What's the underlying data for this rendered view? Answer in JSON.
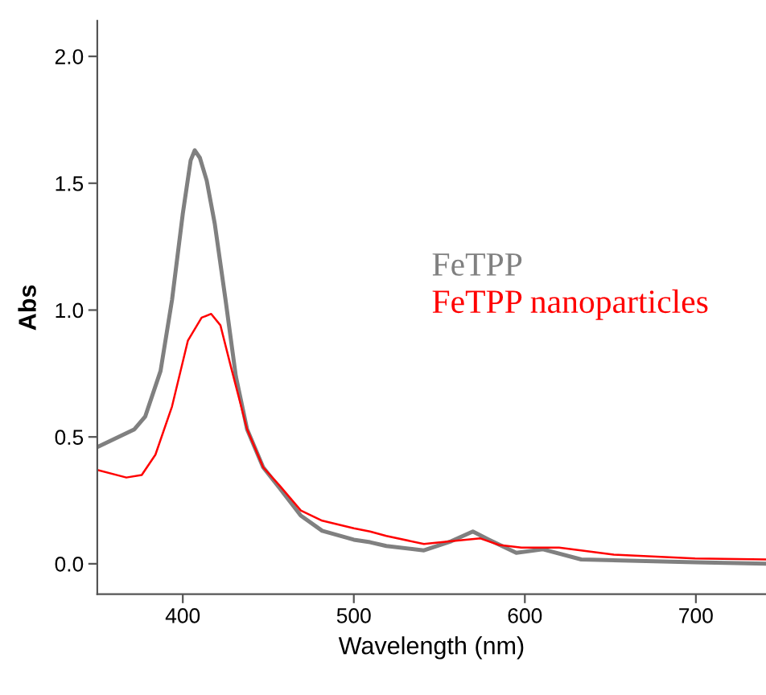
{
  "chart_data": {
    "type": "line",
    "xlabel": "Wavelength (nm)",
    "ylabel": "Abs",
    "xlim": [
      350,
      741
    ],
    "xticks": [
      400,
      500,
      600,
      700
    ],
    "ylim": [
      -0.12,
      2.14
    ],
    "yticks": [
      {
        "value": 0,
        "label": "0.0"
      },
      0.5,
      {
        "value": 1,
        "label": "1.0"
      },
      1.5,
      {
        "value": 2,
        "label": "2.0"
      }
    ],
    "grid": false,
    "legend": false,
    "series": [
      {
        "name": "FeTPP",
        "color": "#808080",
        "x": [
          350,
          371.7,
          378,
          387,
          393.7,
          400,
          404.6,
          407,
          410,
          414,
          418.7,
          425,
          431,
          437.6,
          447,
          456.4,
          469,
          481.5,
          500,
          509.5,
          519,
          541,
          557,
          569.6,
          579,
          595,
          610.6,
          633,
          699.5,
          741
        ],
        "values": [
          0.46,
          0.53,
          0.58,
          0.76,
          1.04,
          1.38,
          1.59,
          1.63,
          1.6,
          1.51,
          1.34,
          1.04,
          0.74,
          0.53,
          0.38,
          0.3,
          0.19,
          0.13,
          0.095,
          0.085,
          0.07,
          0.053,
          0.089,
          0.127,
          0.095,
          0.043,
          0.057,
          0.017,
          0.006,
          0.0
        ]
      },
      {
        "name": "FeTPP nanoparticles",
        "color": "#ff0000",
        "x": [
          350,
          367,
          376,
          384,
          393.7,
          403,
          411,
          416.6,
          422,
          428,
          437.6,
          447,
          456.4,
          469,
          481.5,
          500,
          509.5,
          519,
          541,
          557,
          574,
          585,
          598,
          620,
          652,
          699.5,
          741
        ],
        "values": [
          0.37,
          0.34,
          0.35,
          0.43,
          0.62,
          0.88,
          0.97,
          0.985,
          0.94,
          0.78,
          0.53,
          0.38,
          0.31,
          0.21,
          0.17,
          0.14,
          0.127,
          0.11,
          0.078,
          0.089,
          0.1,
          0.074,
          0.064,
          0.064,
          0.036,
          0.021,
          0.017
        ]
      }
    ]
  }
}
